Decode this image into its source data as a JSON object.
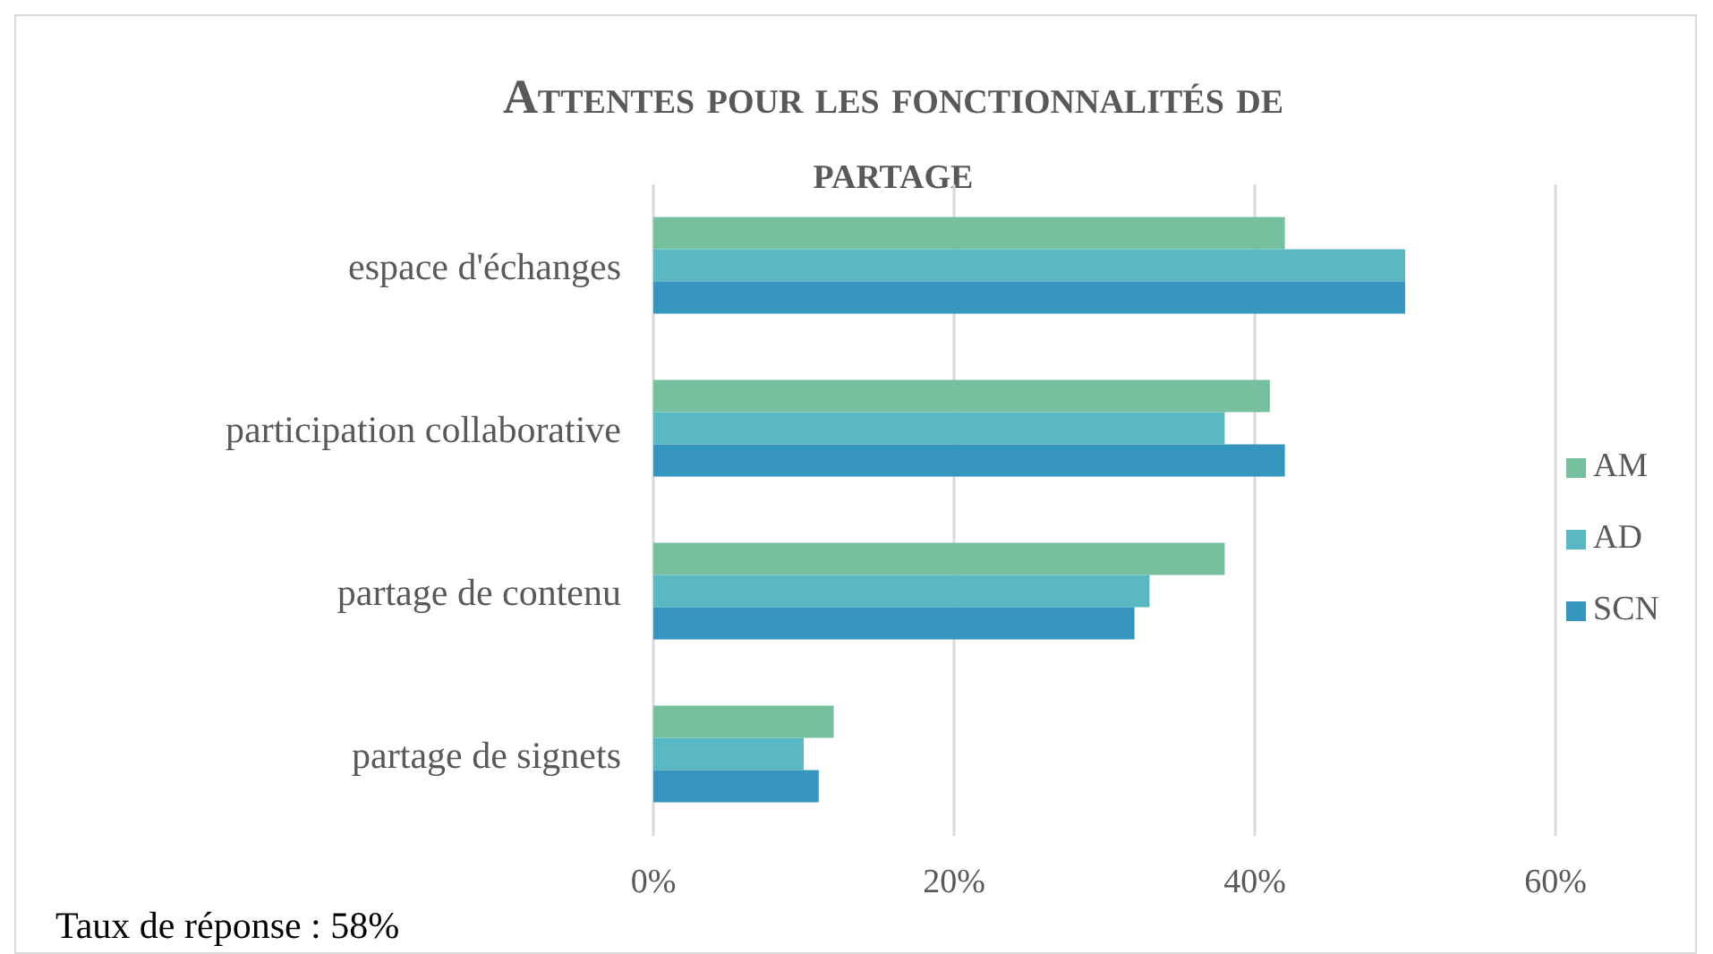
{
  "chart_data": {
    "type": "bar",
    "orientation": "horizontal",
    "title": "Attentes pour les fonctionnalités de partage",
    "categories": [
      "espace d'échanges",
      "participation collaborative",
      "partage de contenu",
      "partage de signets"
    ],
    "series": [
      {
        "name": "AM",
        "color": "#76c0a0",
        "values": [
          42,
          41,
          38,
          12
        ]
      },
      {
        "name": "AD",
        "color": "#5ab8c4",
        "values": [
          50,
          38,
          33,
          10
        ]
      },
      {
        "name": "SCN",
        "color": "#3796bd",
        "values": [
          50,
          42,
          32,
          11
        ]
      }
    ],
    "xlim": [
      0,
      60
    ],
    "xticks": [
      {
        "value": 0,
        "label": "0%"
      },
      {
        "value": 20,
        "label": "20%"
      },
      {
        "value": 40,
        "label": "40%"
      },
      {
        "value": 60,
        "label": "60%"
      }
    ],
    "grid": "x",
    "legend": "right",
    "annotations": [
      "Taux de réponse : 58%"
    ]
  }
}
